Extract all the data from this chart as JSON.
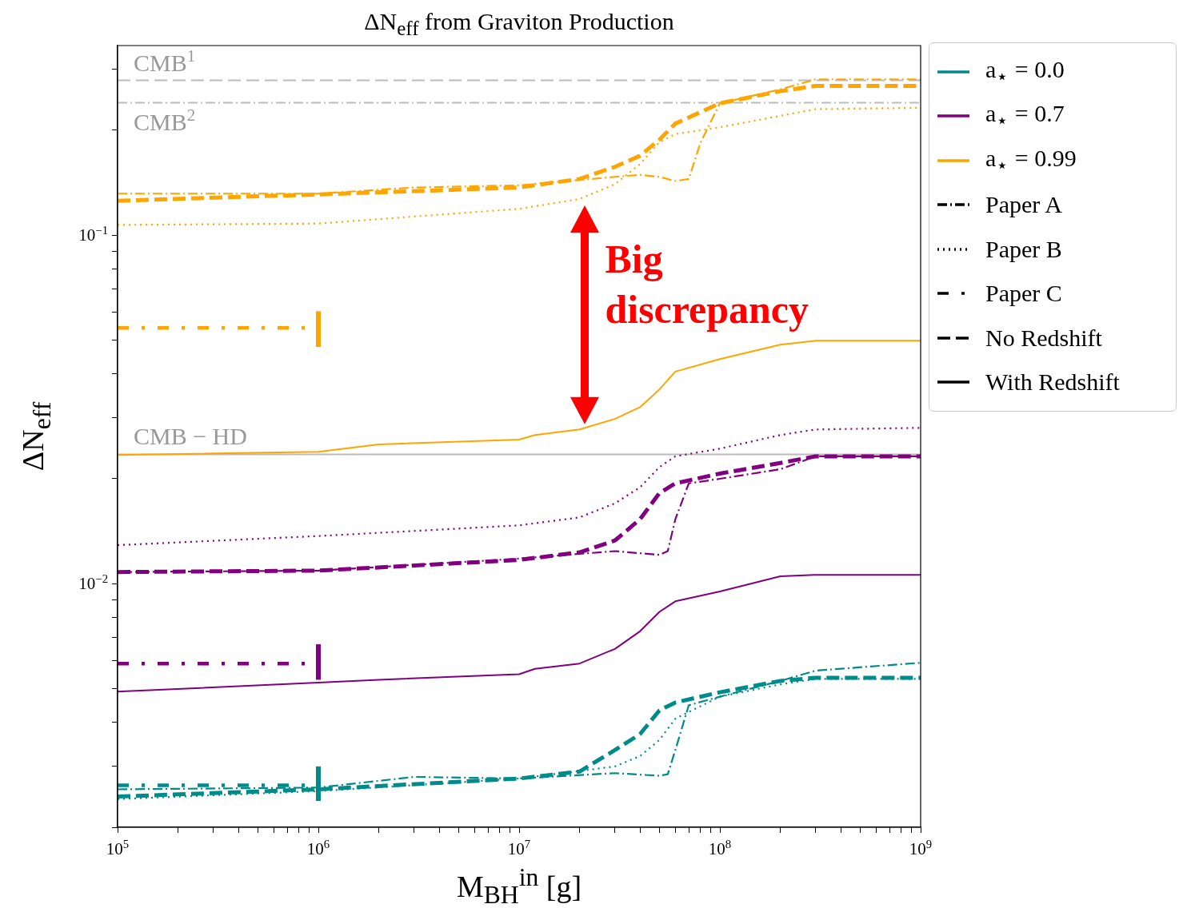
{
  "chart_data": {
    "type": "line",
    "title": "ΔN$_{eff}$ from Graviton Production",
    "xlabel": "M$_{BH}$$^{in}$ [g]",
    "ylabel": "ΔN$_{eff}$",
    "log": "xy",
    "grid": false,
    "legend": "right",
    "marker": "none",
    "xlim": [
      100000,
      1000000000
    ],
    "xticks": [
      {
        "value": 100000,
        "label": "10$^{5}$"
      },
      {
        "value": 200000,
        "label": null
      },
      {
        "value": 300000,
        "label": null
      },
      {
        "value": 400000,
        "label": null
      },
      {
        "value": 500000,
        "label": null
      },
      {
        "value": 600000,
        "label": null
      },
      {
        "value": 700000,
        "label": null
      },
      {
        "value": 800000,
        "label": null
      },
      {
        "value": 900000,
        "label": null
      },
      {
        "value": 1000000,
        "label": "10$^{6}$"
      },
      {
        "value": 2000000,
        "label": null
      },
      {
        "value": 3000000,
        "label": null
      },
      {
        "value": 4000000,
        "label": null
      },
      {
        "value": 5000000,
        "label": null
      },
      {
        "value": 6000000,
        "label": null
      },
      {
        "value": 7000000,
        "label": null
      },
      {
        "value": 8000000,
        "label": null
      },
      {
        "value": 9000000,
        "label": null
      },
      {
        "value": 10000000,
        "label": "10$^{7}$"
      },
      {
        "value": 20000000,
        "label": null
      },
      {
        "value": 30000000,
        "label": null
      },
      {
        "value": 40000000,
        "label": null
      },
      {
        "value": 50000000,
        "label": null
      },
      {
        "value": 60000000,
        "label": null
      },
      {
        "value": 70000000,
        "label": null
      },
      {
        "value": 80000000,
        "label": null
      },
      {
        "value": 90000000,
        "label": null
      },
      {
        "value": 100000000,
        "label": "10$^{8}$"
      },
      {
        "value": 200000000,
        "label": null
      },
      {
        "value": 300000000,
        "label": null
      },
      {
        "value": 400000000,
        "label": null
      },
      {
        "value": 500000000,
        "label": null
      },
      {
        "value": 600000000,
        "label": null
      },
      {
        "value": 700000000,
        "label": null
      },
      {
        "value": 800000000,
        "label": null
      },
      {
        "value": 900000000,
        "label": null
      },
      {
        "value": 1000000000,
        "label": "10$^{9}$"
      }
    ],
    "ylim": [
      0.002,
      0.35
    ],
    "yticks": [
      {
        "value": 0.002,
        "label": null
      },
      {
        "value": 0.003,
        "label": null
      },
      {
        "value": 0.004,
        "label": null
      },
      {
        "value": 0.005,
        "label": null
      },
      {
        "value": 0.006,
        "label": null
      },
      {
        "value": 0.007,
        "label": null
      },
      {
        "value": 0.008,
        "label": null
      },
      {
        "value": 0.009,
        "label": null
      },
      {
        "value": 0.01,
        "label": "10$^{−2}$"
      },
      {
        "value": 0.02,
        "label": null
      },
      {
        "value": 0.03,
        "label": null
      },
      {
        "value": 0.04,
        "label": null
      },
      {
        "value": 0.05,
        "label": null
      },
      {
        "value": 0.06,
        "label": null
      },
      {
        "value": 0.07,
        "label": null
      },
      {
        "value": 0.08,
        "label": null
      },
      {
        "value": 0.09,
        "label": null
      },
      {
        "value": 0.1,
        "label": "10$^{−1}$"
      },
      {
        "value": 0.2,
        "label": null
      },
      {
        "value": 0.3,
        "label": null
      }
    ],
    "ref_lines": [
      {
        "axis": "y",
        "value": 0.278,
        "label": "CMB$^{1}$",
        "color": "#bbbbbb",
        "line_style": "dashed"
      },
      {
        "axis": "y",
        "value": 0.24,
        "label": "CMB$^{2}$",
        "color": "#bbbbbb",
        "line_style": "dashdot"
      },
      {
        "axis": "y",
        "value": 0.0235,
        "label": "CMB − HD",
        "color": "#bbbbbb",
        "line_style": "solid"
      }
    ],
    "annotations": [
      "Big discrepancy"
    ],
    "series": [
      {
        "name": "a$_{⋆}$ = 0.0",
        "color": "#008b8b",
        "line_style": "solid"
      },
      {
        "name": "a$_{⋆}$ = 0.7",
        "color": "#800080",
        "line_style": "solid"
      },
      {
        "name": "a$_{⋆}$ = 0.99",
        "color": "#ffa500",
        "line_style": "solid"
      },
      {
        "name": "Paper A",
        "color": "#000000",
        "line_style": "dashdot"
      },
      {
        "name": "Paper B",
        "color": "#000000",
        "line_style": "dotted"
      },
      {
        "name": "Paper C",
        "color": "#000000",
        "line_style": "dashdotdot"
      },
      {
        "name": "No Redshift",
        "color": "#000000",
        "line_style": "dashed"
      },
      {
        "name": "With Redshift",
        "color": "#000000",
        "line_style": "solid"
      },
      {
        "color": "#ffa500",
        "line_style": "dashed",
        "x": [
          100000,
          1000000,
          10000000,
          20000000,
          30000000,
          40000000,
          50000000,
          60000000,
          100000000,
          200000000,
          300000000,
          1000000000
        ],
        "values": [
          0.1255,
          0.1309,
          0.137,
          0.145,
          0.157,
          0.169,
          0.188,
          0.209,
          0.239,
          0.259,
          0.268,
          0.268
        ]
      },
      {
        "color": "#ffa500",
        "line_style": "dashdot",
        "x": [
          100000,
          1000000,
          3000000,
          10000000,
          30000000,
          40000000,
          50000000,
          60000000,
          70000000,
          80000000,
          100000000,
          200000000,
          300000000,
          1000000000
        ],
        "values": [
          0.1316,
          0.1316,
          0.137,
          0.139,
          0.147,
          0.149,
          0.147,
          0.143,
          0.145,
          0.184,
          0.239,
          0.262,
          0.28,
          0.28
        ]
      },
      {
        "color": "#ffa500",
        "line_style": "dotted",
        "x": [
          100000,
          1000000,
          10000000,
          20000000,
          30000000,
          40000000,
          50000000,
          60000000,
          100000000,
          200000000,
          300000000,
          1000000000
        ],
        "values": [
          0.107,
          0.108,
          0.119,
          0.127,
          0.14,
          0.16,
          0.185,
          0.195,
          0.204,
          0.22,
          0.23,
          0.232
        ]
      },
      {
        "color": "#ffa500",
        "line_style": "solid",
        "x": [
          100000,
          1000000,
          2000000,
          10000000,
          12000000,
          20000000,
          30000000,
          40000000,
          50000000,
          60000000,
          100000000,
          200000000,
          300000000,
          1000000000
        ],
        "values": [
          0.0234,
          0.0239,
          0.0251,
          0.0259,
          0.0267,
          0.0277,
          0.0297,
          0.0321,
          0.0361,
          0.0406,
          0.0441,
          0.0485,
          0.0498,
          0.0498
        ]
      },
      {
        "color": "#ffa500",
        "line_style": "dashdotdot",
        "x": [
          100000,
          1000000
        ],
        "values": [
          0.0542,
          0.0542
        ],
        "errors": [
          null,
          [
            0.0478,
            0.0605
          ]
        ]
      },
      {
        "color": "#800080",
        "line_style": "dashed",
        "x": [
          100000,
          1000000,
          10000000,
          20000000,
          30000000,
          40000000,
          50000000,
          60000000,
          100000000,
          200000000,
          300000000,
          1000000000
        ],
        "values": [
          0.0108,
          0.0109,
          0.0117,
          0.0123,
          0.0133,
          0.0153,
          0.0182,
          0.0194,
          0.0207,
          0.0222,
          0.0232,
          0.0232
        ]
      },
      {
        "color": "#800080",
        "line_style": "dashdot",
        "x": [
          100000,
          1000000,
          10000000,
          30000000,
          50000000,
          55000000,
          60000000,
          70000000,
          100000000,
          200000000,
          300000000,
          1000000000
        ],
        "values": [
          0.0108,
          0.0109,
          0.0118,
          0.0124,
          0.0121,
          0.0124,
          0.0153,
          0.0194,
          0.02,
          0.0213,
          0.0232,
          0.0232
        ]
      },
      {
        "color": "#800080",
        "line_style": "dotted",
        "x": [
          100000,
          1000000,
          10000000,
          20000000,
          30000000,
          40000000,
          50000000,
          60000000,
          100000000,
          200000000,
          300000000,
          1000000000
        ],
        "values": [
          0.0129,
          0.0137,
          0.0147,
          0.0155,
          0.017,
          0.0189,
          0.0216,
          0.0232,
          0.0244,
          0.0267,
          0.0277,
          0.028
        ]
      },
      {
        "color": "#800080",
        "line_style": "solid",
        "x": [
          100000,
          1000000,
          2000000,
          10000000,
          12000000,
          20000000,
          30000000,
          40000000,
          50000000,
          60000000,
          100000000,
          200000000,
          300000000,
          1000000000
        ],
        "values": [
          0.0049,
          0.0052,
          0.0053,
          0.0055,
          0.0057,
          0.0059,
          0.0065,
          0.0073,
          0.0083,
          0.0089,
          0.0095,
          0.0105,
          0.0106,
          0.0106
        ]
      },
      {
        "color": "#800080",
        "line_style": "dashdotdot",
        "x": [
          100000,
          1000000
        ],
        "values": [
          0.0059,
          0.0059
        ],
        "errors": [
          null,
          [
            0.0053,
            0.0067
          ]
        ]
      },
      {
        "color": "#008b8b",
        "line_style": "dashed",
        "x": [
          100000,
          1000000,
          10000000,
          20000000,
          30000000,
          40000000,
          50000000,
          60000000,
          100000000,
          200000000,
          300000000,
          1000000000
        ],
        "values": [
          0.00245,
          0.00257,
          0.00276,
          0.00289,
          0.00333,
          0.0037,
          0.00433,
          0.00456,
          0.00488,
          0.00526,
          0.00537,
          0.00537
        ]
      },
      {
        "color": "#008b8b",
        "line_style": "dashdot",
        "x": [
          100000,
          1000000,
          3000000,
          10000000,
          30000000,
          50000000,
          55000000,
          60000000,
          70000000,
          100000000,
          200000000,
          300000000,
          1000000000
        ],
        "values": [
          0.00257,
          0.0026,
          0.00279,
          0.00276,
          0.00286,
          0.00281,
          0.00284,
          0.00333,
          0.00448,
          0.00474,
          0.00526,
          0.00563,
          0.00593
        ]
      },
      {
        "color": "#008b8b",
        "line_style": "dotted",
        "x": [
          100000,
          1000000,
          10000000,
          20000000,
          30000000,
          40000000,
          50000000,
          60000000,
          100000000,
          200000000,
          300000000,
          1000000000
        ],
        "values": [
          0.00241,
          0.00254,
          0.00276,
          0.0029,
          0.00299,
          0.0032,
          0.00356,
          0.0041,
          0.00474,
          0.00514,
          0.00533,
          0.00533
        ]
      },
      {
        "color": "#008b8b",
        "line_style": "dashdotdot",
        "x": [
          100000,
          1000000
        ],
        "values": [
          0.00264,
          0.00264
        ],
        "errors": [
          null,
          [
            0.00238,
            0.00299
          ]
        ]
      }
    ]
  }
}
